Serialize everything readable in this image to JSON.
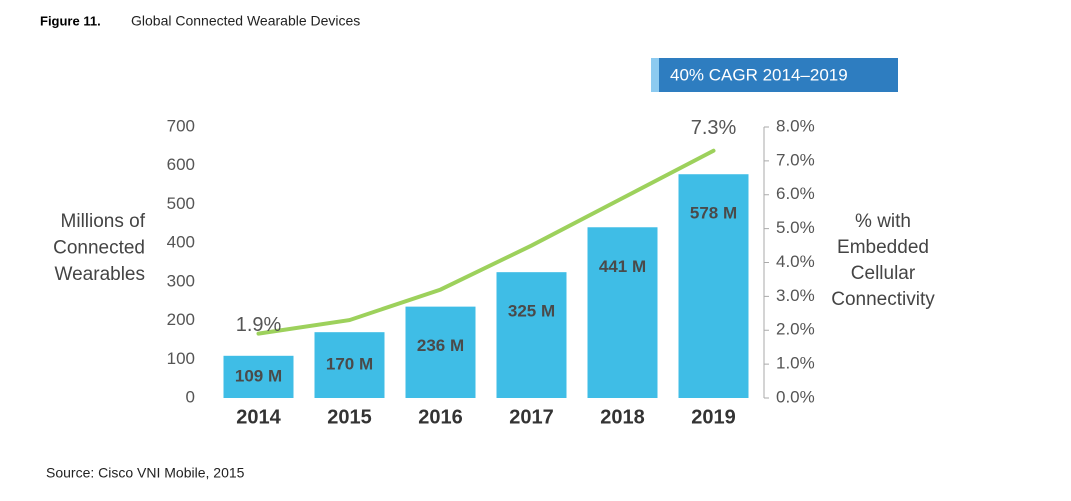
{
  "chart_data": {
    "type": "bar",
    "figure_label": "Figure 11.",
    "title": "Global Connected Wearable Devices",
    "annotation": "40% CAGR 2014–2019",
    "source": "Source: Cisco VNI Mobile, 2015",
    "ylabel": [
      "Millions of",
      "Connected",
      "Wearables"
    ],
    "y2label": [
      "% with",
      "Embedded",
      "Cellular",
      "Connectivity"
    ],
    "categories": [
      "2014",
      "2015",
      "2016",
      "2017",
      "2018",
      "2019"
    ],
    "series": [
      {
        "type": "bar",
        "color": "#3fbde6",
        "values": [
          109,
          170,
          236,
          325,
          441,
          578
        ],
        "value_labels": [
          "109 M",
          "170 M",
          "236 M",
          "325 M",
          "441 M",
          "578 M"
        ]
      },
      {
        "type": "line",
        "axis": "y2",
        "color": "#9dd15c",
        "values": [
          1.9,
          2.3,
          3.2,
          4.5,
          5.9,
          7.3
        ],
        "value_labels": [
          "1.9%",
          null,
          null,
          null,
          null,
          "7.3%"
        ]
      }
    ],
    "ylim": [
      0,
      700
    ],
    "yticks": [
      0,
      100,
      200,
      300,
      400,
      500,
      600,
      700
    ],
    "y2lim": [
      0,
      8
    ],
    "y2ticks": [
      {
        "value": 0,
        "label": "0.0%"
      },
      {
        "value": 1,
        "label": "1.0%"
      },
      {
        "value": 2,
        "label": "2.0%"
      },
      {
        "value": 3,
        "label": "3.0%"
      },
      {
        "value": 4,
        "label": "4.0%"
      },
      {
        "value": 5,
        "label": "5.0%"
      },
      {
        "value": 6,
        "label": "6.0%"
      },
      {
        "value": 7,
        "label": "7.0%"
      },
      {
        "value": 8,
        "label": "8.0%"
      }
    ]
  }
}
